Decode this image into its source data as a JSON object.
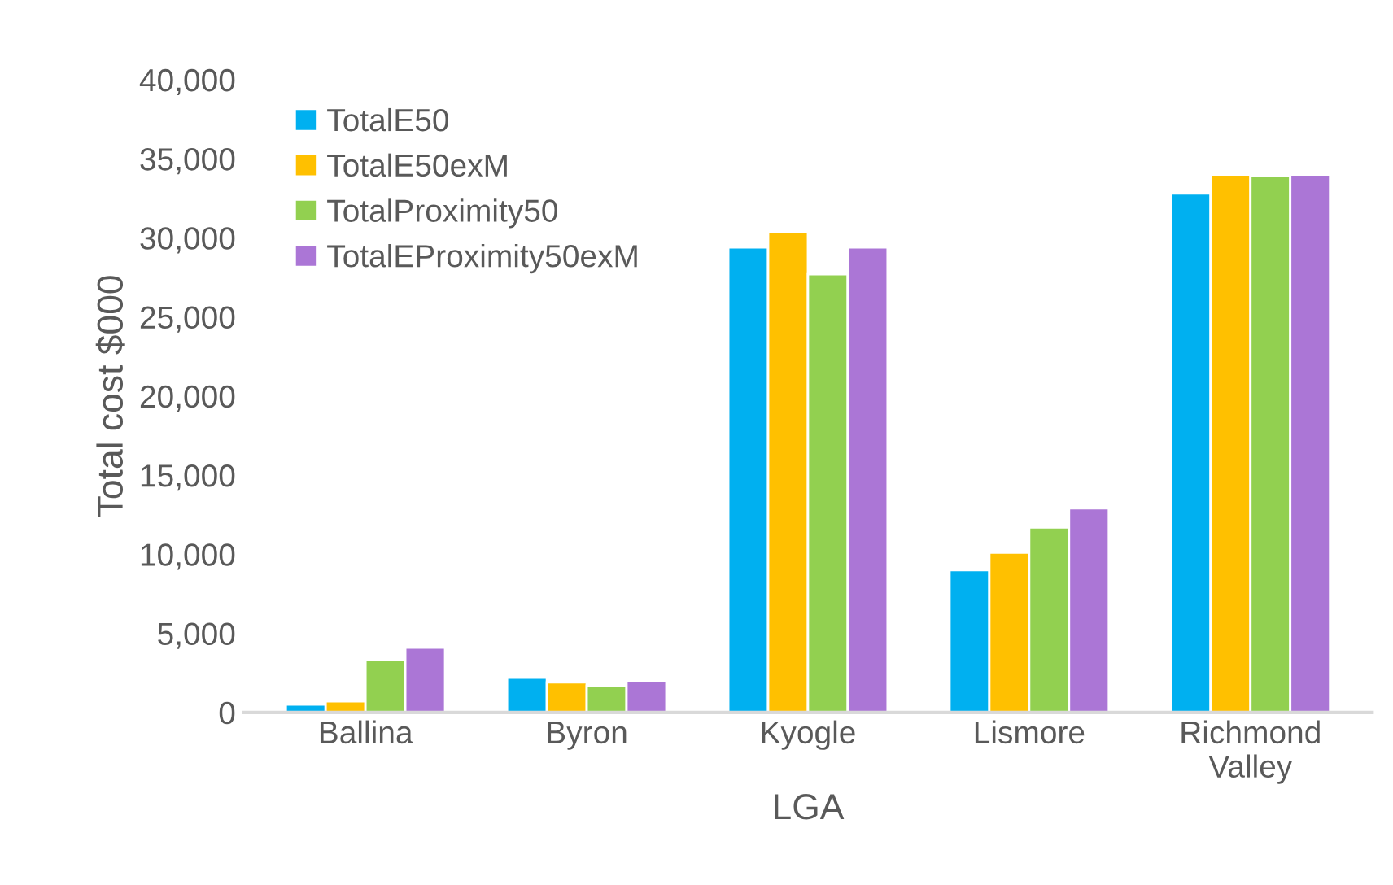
{
  "chart_data": {
    "type": "bar",
    "xlabel": "LGA",
    "ylabel": "Total cost $000",
    "categories": [
      "Ballina",
      "Byron",
      "Kyogle",
      "Lismore",
      "Richmond\nValley"
    ],
    "series": [
      {
        "name": "TotalE50",
        "color": "#00b0f0",
        "values": [
          500,
          2200,
          29400,
          9000,
          32800
        ]
      },
      {
        "name": "TotalE50exM",
        "color": "#ffc000",
        "values": [
          700,
          1900,
          30400,
          10100,
          34000
        ]
      },
      {
        "name": "TotalProximity50",
        "color": "#92d050",
        "values": [
          3300,
          1700,
          27700,
          11700,
          33900
        ]
      },
      {
        "name": "TotalEProximity50exM",
        "color": "#ab76d6",
        "values": [
          4100,
          2000,
          29400,
          12900,
          34000
        ]
      }
    ],
    "ylim": [
      0,
      40000
    ],
    "yticks": [
      {
        "value": 0,
        "label": "0"
      },
      {
        "value": 5000,
        "label": "5,000"
      },
      {
        "value": 10000,
        "label": "10,000"
      },
      {
        "value": 15000,
        "label": "15,000"
      },
      {
        "value": 20000,
        "label": "20,000"
      },
      {
        "value": 25000,
        "label": "25,000"
      },
      {
        "value": 30000,
        "label": "30,000"
      },
      {
        "value": 35000,
        "label": "35,000"
      },
      {
        "value": 40000,
        "label": "40,000"
      }
    ],
    "grid": false,
    "legend": "top left"
  }
}
